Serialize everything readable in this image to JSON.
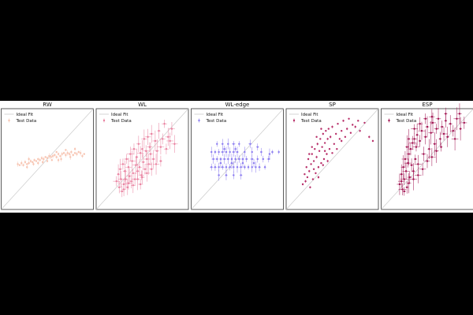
{
  "figure": {
    "background": "#ffffff",
    "page_background": "#000000"
  },
  "legend": {
    "ideal_label": "Ideal Fit",
    "test_label": "Test Data",
    "placement": "upper-left",
    "ideal_color": "#cccccc"
  },
  "chart_data": [
    {
      "type": "scatter",
      "title": "RW",
      "color": "#f7c3b0",
      "axes": "shared 0-1 range, ticks hidden",
      "grid": false,
      "error_bars": "small",
      "ideal_fit": "diagonal y = x",
      "points": [
        [
          0.18,
          0.45
        ],
        [
          0.2,
          0.44
        ],
        [
          0.22,
          0.46
        ],
        [
          0.24,
          0.44
        ],
        [
          0.26,
          0.47
        ],
        [
          0.28,
          0.45
        ],
        [
          0.3,
          0.46
        ],
        [
          0.32,
          0.48
        ],
        [
          0.34,
          0.47
        ],
        [
          0.36,
          0.49
        ],
        [
          0.38,
          0.48
        ],
        [
          0.4,
          0.5
        ],
        [
          0.42,
          0.49
        ],
        [
          0.44,
          0.51
        ],
        [
          0.46,
          0.5
        ],
        [
          0.48,
          0.52
        ],
        [
          0.5,
          0.51
        ],
        [
          0.52,
          0.53
        ],
        [
          0.54,
          0.52
        ],
        [
          0.56,
          0.53
        ],
        [
          0.58,
          0.54
        ],
        [
          0.6,
          0.52
        ],
        [
          0.62,
          0.55
        ],
        [
          0.64,
          0.53
        ],
        [
          0.66,
          0.55
        ],
        [
          0.68,
          0.56
        ],
        [
          0.7,
          0.54
        ],
        [
          0.72,
          0.56
        ],
        [
          0.74,
          0.55
        ],
        [
          0.76,
          0.57
        ],
        [
          0.78,
          0.54
        ],
        [
          0.8,
          0.56
        ],
        [
          0.82,
          0.55
        ],
        [
          0.84,
          0.57
        ],
        [
          0.86,
          0.56
        ],
        [
          0.88,
          0.53
        ],
        [
          0.9,
          0.55
        ],
        [
          0.35,
          0.45
        ],
        [
          0.45,
          0.47
        ],
        [
          0.55,
          0.49
        ],
        [
          0.65,
          0.5
        ],
        [
          0.75,
          0.52
        ],
        [
          0.3,
          0.5
        ],
        [
          0.4,
          0.46
        ],
        [
          0.5,
          0.48
        ],
        [
          0.6,
          0.57
        ],
        [
          0.7,
          0.59
        ],
        [
          0.28,
          0.42
        ],
        [
          0.62,
          0.49
        ],
        [
          0.8,
          0.6
        ]
      ]
    },
    {
      "type": "scatter",
      "title": "WL",
      "color": "#e9809f",
      "axes": "shared 0-1 range, ticks hidden",
      "grid": false,
      "error_bars": "large",
      "ideal_fit": "diagonal y = x",
      "points": [
        [
          0.22,
          0.28
        ],
        [
          0.24,
          0.35
        ],
        [
          0.25,
          0.22
        ],
        [
          0.26,
          0.4
        ],
        [
          0.27,
          0.3
        ],
        [
          0.28,
          0.18
        ],
        [
          0.29,
          0.45
        ],
        [
          0.3,
          0.25
        ],
        [
          0.31,
          0.38
        ],
        [
          0.32,
          0.3
        ],
        [
          0.33,
          0.5
        ],
        [
          0.34,
          0.22
        ],
        [
          0.35,
          0.42
        ],
        [
          0.36,
          0.33
        ],
        [
          0.37,
          0.55
        ],
        [
          0.38,
          0.28
        ],
        [
          0.39,
          0.48
        ],
        [
          0.4,
          0.36
        ],
        [
          0.41,
          0.6
        ],
        [
          0.42,
          0.3
        ],
        [
          0.43,
          0.44
        ],
        [
          0.44,
          0.52
        ],
        [
          0.45,
          0.38
        ],
        [
          0.46,
          0.65
        ],
        [
          0.47,
          0.42
        ],
        [
          0.48,
          0.56
        ],
        [
          0.49,
          0.34
        ],
        [
          0.5,
          0.6
        ],
        [
          0.51,
          0.47
        ],
        [
          0.52,
          0.7
        ],
        [
          0.53,
          0.4
        ],
        [
          0.54,
          0.58
        ],
        [
          0.55,
          0.5
        ],
        [
          0.56,
          0.72
        ],
        [
          0.57,
          0.45
        ],
        [
          0.58,
          0.62
        ],
        [
          0.59,
          0.55
        ],
        [
          0.6,
          0.75
        ],
        [
          0.62,
          0.5
        ],
        [
          0.64,
          0.68
        ],
        [
          0.66,
          0.58
        ],
        [
          0.68,
          0.78
        ],
        [
          0.7,
          0.62
        ],
        [
          0.72,
          0.7
        ],
        [
          0.74,
          0.85
        ],
        [
          0.76,
          0.6
        ],
        [
          0.78,
          0.72
        ],
        [
          0.8,
          0.68
        ],
        [
          0.82,
          0.8
        ],
        [
          0.85,
          0.65
        ],
        [
          0.3,
          0.2
        ],
        [
          0.35,
          0.26
        ],
        [
          0.4,
          0.24
        ],
        [
          0.45,
          0.3
        ],
        [
          0.5,
          0.32
        ],
        [
          0.55,
          0.36
        ],
        [
          0.6,
          0.4
        ],
        [
          0.65,
          0.45
        ],
        [
          0.7,
          0.48
        ],
        [
          0.48,
          0.25
        ]
      ]
    },
    {
      "type": "scatter",
      "title": "WL-edge",
      "color": "#8b7cf0",
      "axes": "shared 0-1 range, ticks hidden",
      "grid": false,
      "error_bars": "medium",
      "ideal_fit": "diagonal y = x",
      "points": [
        [
          0.22,
          0.42
        ],
        [
          0.26,
          0.42
        ],
        [
          0.3,
          0.42
        ],
        [
          0.34,
          0.42
        ],
        [
          0.38,
          0.42
        ],
        [
          0.42,
          0.42
        ],
        [
          0.46,
          0.42
        ],
        [
          0.5,
          0.42
        ],
        [
          0.54,
          0.42
        ],
        [
          0.58,
          0.42
        ],
        [
          0.62,
          0.42
        ],
        [
          0.66,
          0.42
        ],
        [
          0.7,
          0.42
        ],
        [
          0.74,
          0.42
        ],
        [
          0.8,
          0.42
        ],
        [
          0.24,
          0.5
        ],
        [
          0.28,
          0.5
        ],
        [
          0.32,
          0.5
        ],
        [
          0.36,
          0.5
        ],
        [
          0.4,
          0.5
        ],
        [
          0.44,
          0.5
        ],
        [
          0.48,
          0.5
        ],
        [
          0.52,
          0.5
        ],
        [
          0.56,
          0.5
        ],
        [
          0.6,
          0.5
        ],
        [
          0.66,
          0.5
        ],
        [
          0.72,
          0.5
        ],
        [
          0.78,
          0.5
        ],
        [
          0.84,
          0.5
        ],
        [
          0.22,
          0.57
        ],
        [
          0.26,
          0.57
        ],
        [
          0.3,
          0.57
        ],
        [
          0.34,
          0.57
        ],
        [
          0.38,
          0.57
        ],
        [
          0.42,
          0.57
        ],
        [
          0.46,
          0.57
        ],
        [
          0.5,
          0.57
        ],
        [
          0.58,
          0.57
        ],
        [
          0.66,
          0.57
        ],
        [
          0.76,
          0.57
        ],
        [
          0.88,
          0.57
        ],
        [
          0.95,
          0.57
        ],
        [
          0.28,
          0.65
        ],
        [
          0.34,
          0.65
        ],
        [
          0.4,
          0.65
        ],
        [
          0.46,
          0.65
        ],
        [
          0.52,
          0.65
        ],
        [
          0.64,
          0.65
        ],
        [
          0.3,
          0.34
        ],
        [
          0.38,
          0.34
        ],
        [
          0.46,
          0.34
        ],
        [
          0.54,
          0.34
        ],
        [
          0.32,
          0.46
        ],
        [
          0.44,
          0.46
        ],
        [
          0.56,
          0.46
        ],
        [
          0.68,
          0.46
        ],
        [
          0.36,
          0.6
        ],
        [
          0.48,
          0.6
        ],
        [
          0.72,
          0.62
        ],
        [
          0.85,
          0.55
        ]
      ]
    },
    {
      "type": "scatter",
      "title": "SP",
      "color": "#b8306a",
      "axes": "shared 0-1 range, ticks hidden",
      "grid": false,
      "error_bars": "tiny",
      "ideal_fit": "diagonal y = x",
      "points": [
        [
          0.18,
          0.25
        ],
        [
          0.2,
          0.35
        ],
        [
          0.21,
          0.28
        ],
        [
          0.22,
          0.42
        ],
        [
          0.23,
          0.32
        ],
        [
          0.24,
          0.5
        ],
        [
          0.25,
          0.38
        ],
        [
          0.26,
          0.22
        ],
        [
          0.27,
          0.45
        ],
        [
          0.28,
          0.55
        ],
        [
          0.29,
          0.3
        ],
        [
          0.3,
          0.48
        ],
        [
          0.31,
          0.6
        ],
        [
          0.32,
          0.36
        ],
        [
          0.33,
          0.52
        ],
        [
          0.34,
          0.65
        ],
        [
          0.35,
          0.42
        ],
        [
          0.36,
          0.58
        ],
        [
          0.37,
          0.7
        ],
        [
          0.38,
          0.46
        ],
        [
          0.39,
          0.62
        ],
        [
          0.4,
          0.75
        ],
        [
          0.41,
          0.5
        ],
        [
          0.42,
          0.66
        ],
        [
          0.43,
          0.78
        ],
        [
          0.44,
          0.55
        ],
        [
          0.45,
          0.7
        ],
        [
          0.46,
          0.8
        ],
        [
          0.47,
          0.6
        ],
        [
          0.48,
          0.72
        ],
        [
          0.5,
          0.82
        ],
        [
          0.52,
          0.65
        ],
        [
          0.54,
          0.75
        ],
        [
          0.56,
          0.85
        ],
        [
          0.58,
          0.7
        ],
        [
          0.6,
          0.78
        ],
        [
          0.62,
          0.88
        ],
        [
          0.64,
          0.72
        ],
        [
          0.66,
          0.8
        ],
        [
          0.68,
          0.9
        ],
        [
          0.7,
          0.76
        ],
        [
          0.72,
          0.84
        ],
        [
          0.75,
          0.82
        ],
        [
          0.78,
          0.88
        ],
        [
          0.8,
          0.78
        ],
        [
          0.85,
          0.86
        ],
        [
          0.9,
          0.72
        ],
        [
          0.94,
          0.68
        ],
        [
          0.3,
          0.4
        ],
        [
          0.35,
          0.32
        ],
        [
          0.4,
          0.44
        ],
        [
          0.45,
          0.48
        ],
        [
          0.5,
          0.56
        ],
        [
          0.55,
          0.6
        ],
        [
          0.6,
          0.68
        ],
        [
          0.28,
          0.62
        ],
        [
          0.33,
          0.72
        ],
        [
          0.38,
          0.8
        ],
        [
          0.25,
          0.55
        ],
        [
          0.42,
          0.58
        ]
      ]
    },
    {
      "type": "scatter",
      "title": "ESP",
      "color": "#a0104f",
      "axes": "shared 0-1 range, ticks hidden",
      "grid": false,
      "error_bars": "large",
      "ideal_fit": "diagonal y = x",
      "points": [
        [
          0.2,
          0.25
        ],
        [
          0.22,
          0.35
        ],
        [
          0.23,
          0.2
        ],
        [
          0.24,
          0.42
        ],
        [
          0.25,
          0.3
        ],
        [
          0.26,
          0.5
        ],
        [
          0.27,
          0.38
        ],
        [
          0.28,
          0.22
        ],
        [
          0.29,
          0.46
        ],
        [
          0.3,
          0.55
        ],
        [
          0.31,
          0.32
        ],
        [
          0.32,
          0.6
        ],
        [
          0.33,
          0.44
        ],
        [
          0.34,
          0.66
        ],
        [
          0.35,
          0.38
        ],
        [
          0.36,
          0.7
        ],
        [
          0.37,
          0.5
        ],
        [
          0.38,
          0.62
        ],
        [
          0.39,
          0.74
        ],
        [
          0.4,
          0.45
        ],
        [
          0.42,
          0.68
        ],
        [
          0.44,
          0.78
        ],
        [
          0.46,
          0.55
        ],
        [
          0.48,
          0.72
        ],
        [
          0.5,
          0.82
        ],
        [
          0.52,
          0.6
        ],
        [
          0.54,
          0.76
        ],
        [
          0.56,
          0.86
        ],
        [
          0.58,
          0.65
        ],
        [
          0.6,
          0.8
        ],
        [
          0.62,
          0.9
        ],
        [
          0.64,
          0.7
        ],
        [
          0.66,
          0.82
        ],
        [
          0.68,
          0.75
        ],
        [
          0.7,
          0.88
        ],
        [
          0.72,
          0.72
        ],
        [
          0.75,
          0.85
        ],
        [
          0.78,
          0.78
        ],
        [
          0.82,
          0.9
        ],
        [
          0.86,
          0.8
        ],
        [
          0.9,
          0.86
        ],
        [
          0.25,
          0.18
        ],
        [
          0.3,
          0.26
        ],
        [
          0.35,
          0.3
        ],
        [
          0.4,
          0.34
        ],
        [
          0.45,
          0.4
        ],
        [
          0.5,
          0.48
        ],
        [
          0.55,
          0.52
        ],
        [
          0.6,
          0.58
        ],
        [
          0.65,
          0.62
        ],
        [
          0.3,
          0.7
        ],
        [
          0.36,
          0.8
        ],
        [
          0.42,
          0.85
        ],
        [
          0.48,
          0.9
        ],
        [
          0.28,
          0.62
        ],
        [
          0.55,
          0.92
        ],
        [
          0.7,
          0.95
        ],
        [
          0.8,
          0.7
        ],
        [
          0.85,
          0.95
        ],
        [
          0.22,
          0.28
        ]
      ]
    }
  ]
}
